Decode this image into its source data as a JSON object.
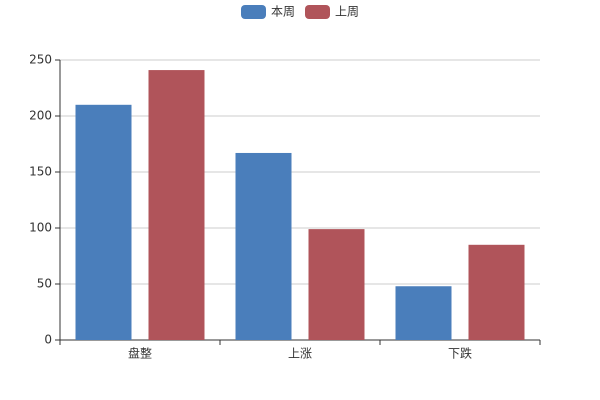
{
  "chart_data": {
    "type": "bar",
    "categories": [
      "盘整",
      "上涨",
      "下跌"
    ],
    "series": [
      {
        "name": "本周",
        "color": "#4a7ebb",
        "values": [
          210,
          167,
          48
        ]
      },
      {
        "name": "上周",
        "color": "#b0545a",
        "values": [
          241,
          99,
          85
        ]
      }
    ],
    "ylim": [
      0,
      250
    ],
    "yticks": [
      0,
      50,
      100,
      150,
      200,
      250
    ],
    "grid": true,
    "legend": "top"
  }
}
